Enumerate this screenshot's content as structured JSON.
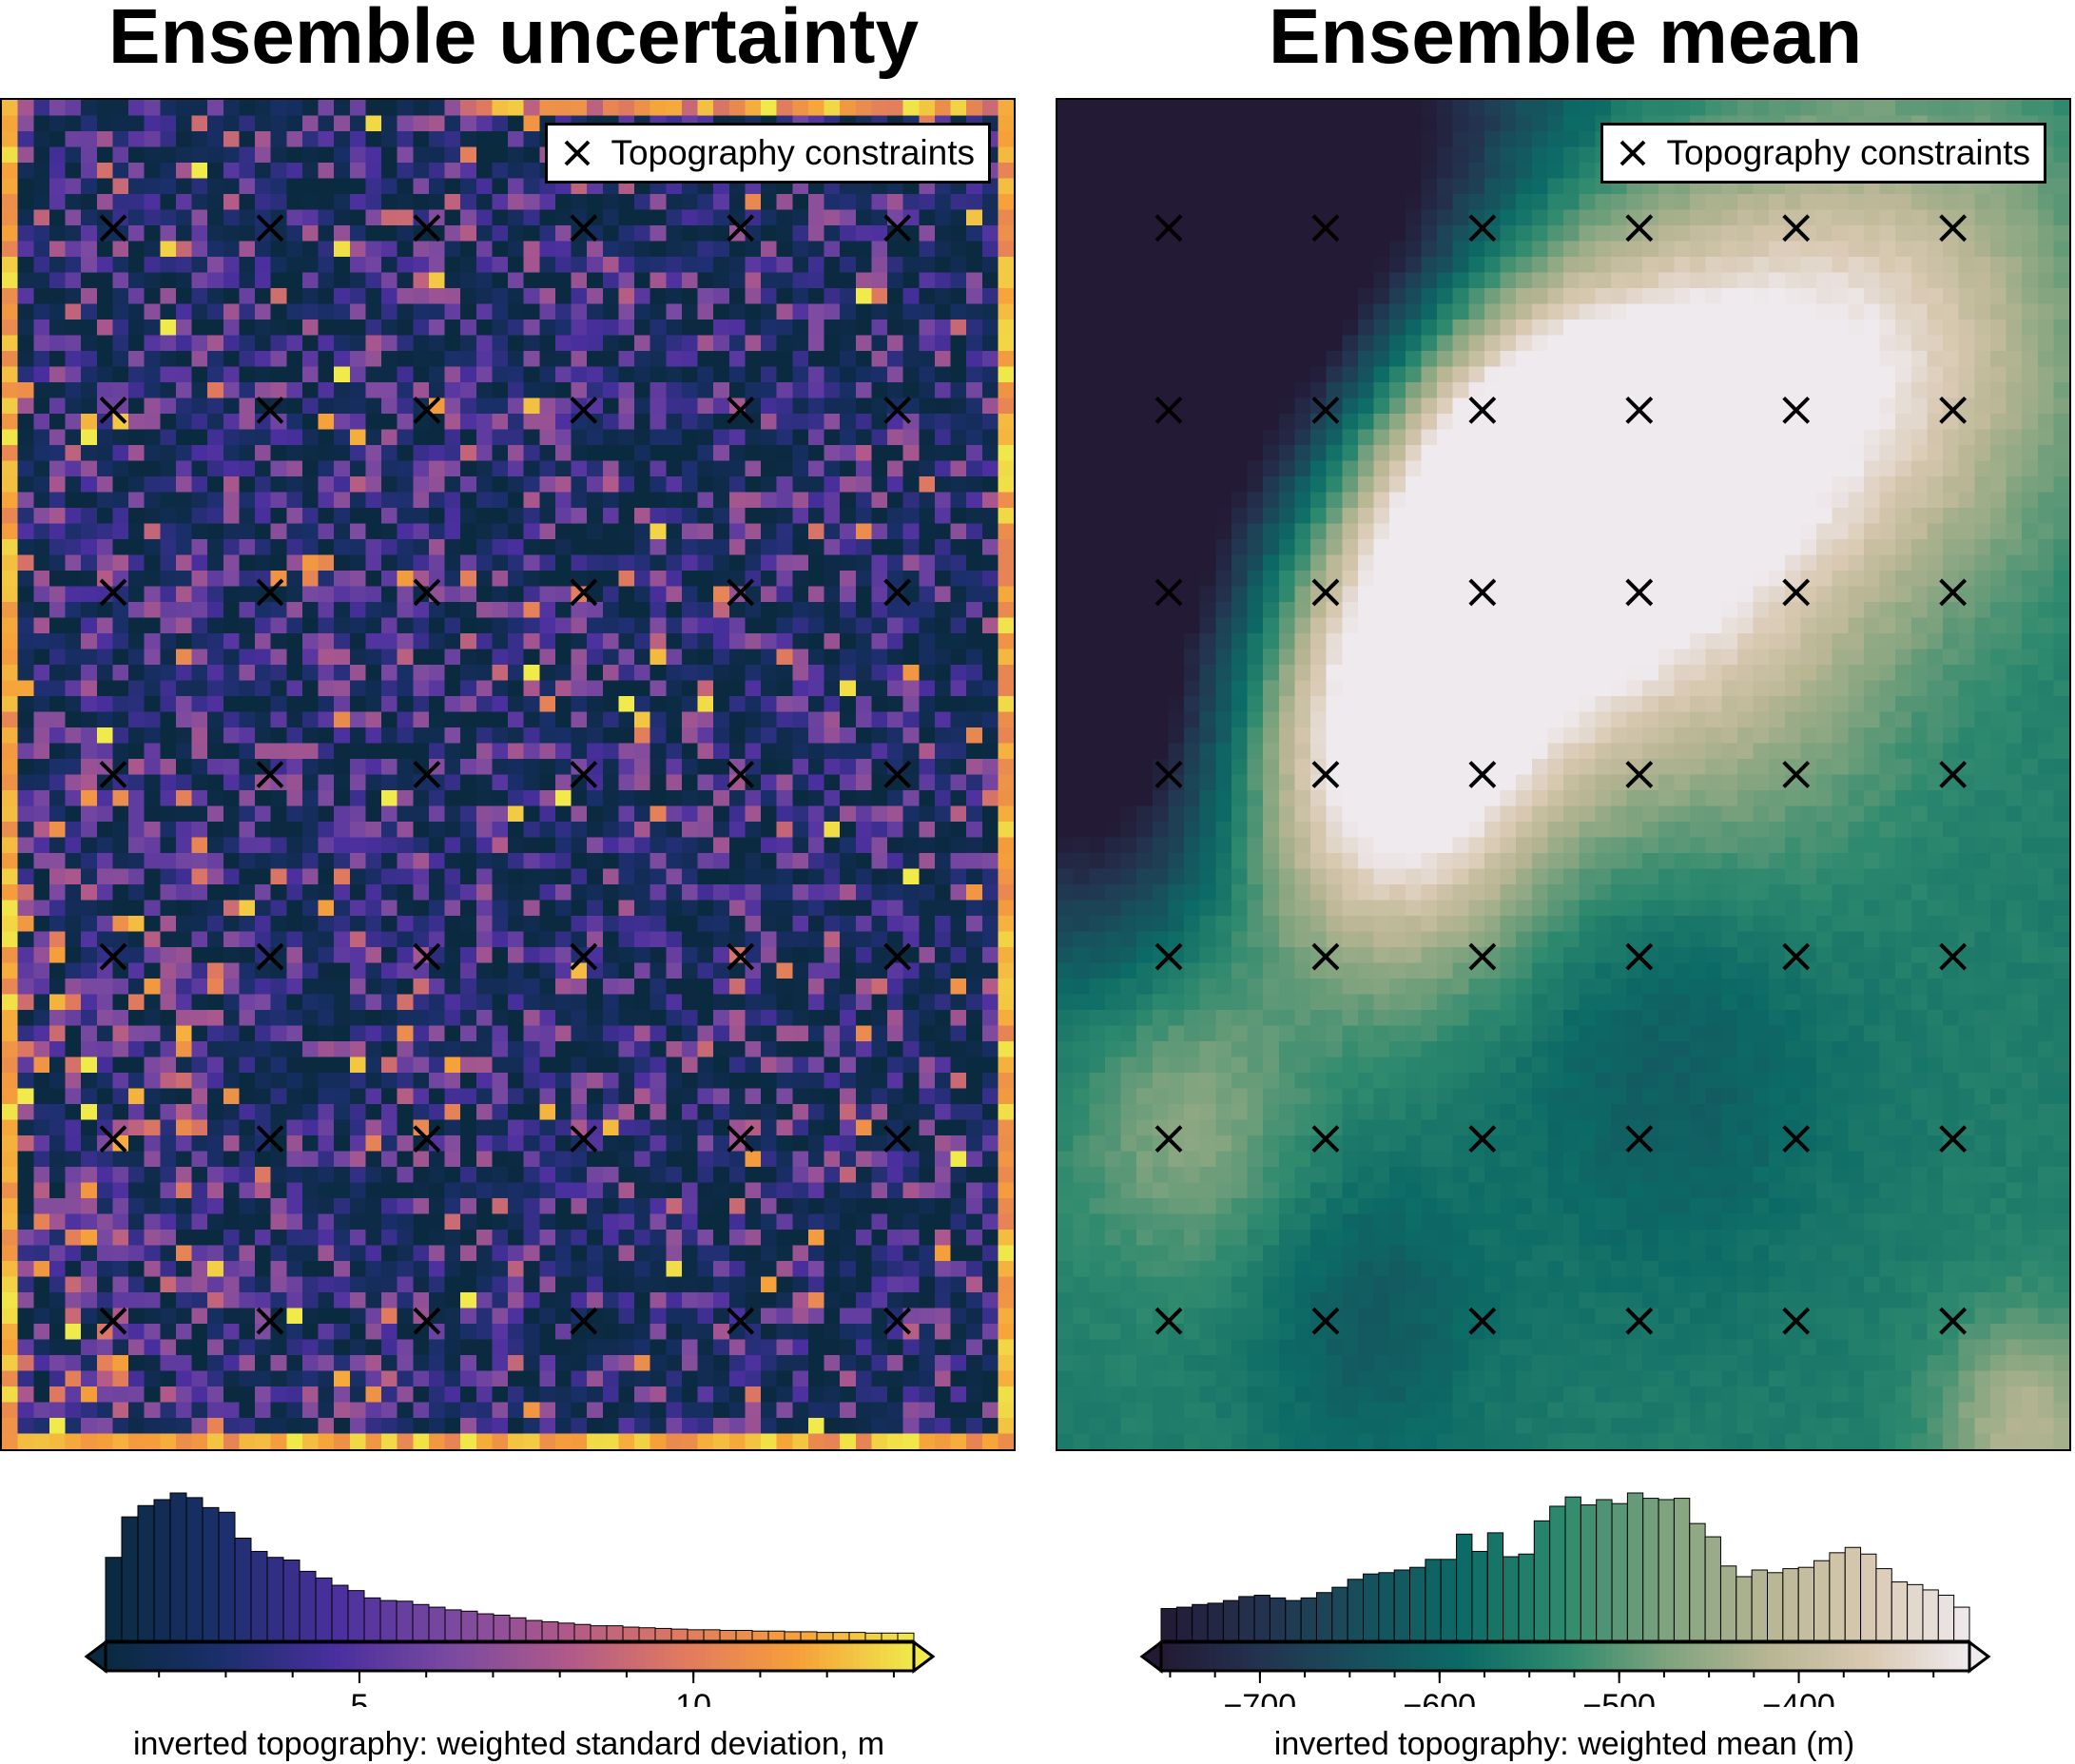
{
  "panels": [
    {
      "id": "uncertainty",
      "title": "Ensemble uncertainty",
      "legend_label": "Topography constraints",
      "legend_marker": "x-marker-icon",
      "colormap": "plasma-like",
      "colormap_stops": [
        "#0a2a3f",
        "#1b2f6b",
        "#4a2f9e",
        "#7a4aa0",
        "#b0598a",
        "#e07a5f",
        "#f6a03a",
        "#f0ea4a"
      ],
      "colorbar": {
        "range": [
          1.2,
          13.3
        ],
        "ticks": [
          5,
          10
        ],
        "tick_labels": [
          "5",
          "10"
        ],
        "label": "inverted topography: weighted standard deviation, m"
      },
      "histogram": [
        12.5,
        18.6,
        20.3,
        21.2,
        22.2,
        21.5,
        20.0,
        19.3,
        15.4,
        13.4,
        12.5,
        12.1,
        10.4,
        9.4,
        8.3,
        7.5,
        6.4,
        6.0,
        5.9,
        5.4,
        5.0,
        4.6,
        4.4,
        4.0,
        3.8,
        3.4,
        3.0,
        2.8,
        2.6,
        2.4,
        2.2,
        2.2,
        2.0,
        1.9,
        1.8,
        1.7,
        1.6,
        1.6,
        1.5,
        1.5,
        1.4,
        1.4,
        1.3,
        1.3,
        1.2,
        1.2,
        1.2,
        1.1,
        1.1,
        1.1
      ]
    },
    {
      "id": "mean",
      "title": "Ensemble mean",
      "legend_label": "Topography constraints",
      "legend_marker": "x-marker-icon",
      "colormap": "rain-like",
      "colormap_stops": [
        "#231a35",
        "#23334f",
        "#17505c",
        "#0c6b66",
        "#2f8a6e",
        "#7fa37e",
        "#b7b593",
        "#d9c9b2",
        "#efeaee"
      ],
      "colorbar": {
        "range": [
          -755,
          -305
        ],
        "ticks": [
          -700,
          -600,
          -500,
          -400
        ],
        "tick_labels": [
          "−700",
          "−600",
          "−500",
          "−400"
        ],
        "label": "inverted topography: weighted mean (m)"
      },
      "histogram": [
        2.4,
        2.5,
        2.7,
        2.8,
        3.0,
        3.3,
        3.4,
        3.2,
        3.0,
        3.2,
        3.6,
        4.0,
        4.6,
        5.0,
        5.1,
        5.3,
        5.5,
        6.1,
        6.1,
        8.0,
        6.7,
        8.1,
        6.3,
        6.5,
        9.0,
        10.1,
        10.8,
        10.2,
        10.6,
        10.3,
        11.1,
        10.7,
        10.6,
        10.7,
        8.8,
        7.8,
        5.6,
        4.8,
        5.3,
        5.1,
        5.4,
        5.5,
        6.0,
        6.6,
        7.0,
        6.5,
        5.4,
        4.4,
        4.2,
        3.8,
        3.4,
        2.5
      ]
    }
  ],
  "constraints": {
    "columns": [
      0.11,
      0.265,
      0.42,
      0.575,
      0.73,
      0.885
    ],
    "rows": [
      0.095,
      0.23,
      0.365,
      0.5,
      0.635,
      0.77,
      0.905
    ]
  }
}
